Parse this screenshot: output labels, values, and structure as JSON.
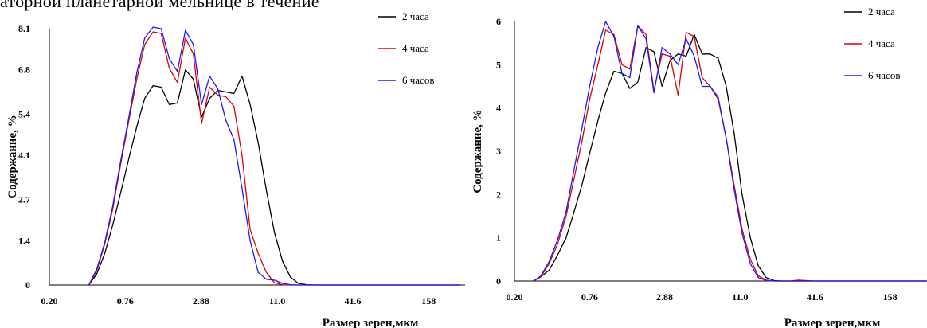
{
  "header_text": "аторной планетарной мельнице в течение",
  "chart_data": [
    {
      "type": "line",
      "ylabel": "Содержание, %",
      "xlabel": "Размер зерен,мкм",
      "x_scale": "log",
      "xlim": [
        0.2,
        300
      ],
      "ylim": [
        0,
        8.1
      ],
      "y_ticks": [
        "8.1",
        "6.8",
        "5.4",
        "4.1",
        "2.7",
        "1.4",
        "0"
      ],
      "y_tick_values": [
        8.1,
        6.8,
        5.4,
        4.1,
        2.7,
        1.4,
        0
      ],
      "x_ticks": [
        "0.20",
        "0.76",
        "2.88",
        "11.0",
        "41.6",
        "158"
      ],
      "x_tick_values": [
        0.2,
        0.76,
        2.88,
        11.0,
        41.6,
        158
      ],
      "legend_position": "top-right",
      "x": [
        0.4,
        0.46,
        0.53,
        0.61,
        0.7,
        0.81,
        0.93,
        1.07,
        1.24,
        1.43,
        1.65,
        1.9,
        2.19,
        2.52,
        2.91,
        3.35,
        3.87,
        4.46,
        5.14,
        5.93,
        6.84,
        7.88,
        9.09,
        10.5,
        12.1,
        13.9,
        16.0,
        18.5,
        21.3,
        24.6,
        28.4,
        32.7,
        37.7,
        43.5,
        50.1,
        57.8,
        66.7,
        76.9,
        88.6,
        102,
        118,
        136,
        157,
        181,
        208,
        240,
        277
      ],
      "series": [
        {
          "name": "2 часа",
          "color": "#000000",
          "values": [
            0,
            0.35,
            1.0,
            1.9,
            2.9,
            4.0,
            5.0,
            5.9,
            6.3,
            6.25,
            5.7,
            5.75,
            6.8,
            6.5,
            5.3,
            5.9,
            6.15,
            6.1,
            6.05,
            6.6,
            5.7,
            4.5,
            3.0,
            1.65,
            0.75,
            0.25,
            0.05,
            0.01,
            0,
            0,
            0,
            0,
            0,
            0,
            0,
            0,
            0,
            0,
            0,
            0,
            0,
            0,
            0,
            0,
            0,
            0,
            0
          ]
        },
        {
          "name": "4 часа",
          "color": "#e00000",
          "values": [
            0,
            0.45,
            1.3,
            2.4,
            3.8,
            5.2,
            6.5,
            7.6,
            8.0,
            7.95,
            6.85,
            6.4,
            7.8,
            7.3,
            5.1,
            6.25,
            6.0,
            5.95,
            5.65,
            4.1,
            1.75,
            1.0,
            0.4,
            0.07,
            0.01,
            0,
            0,
            0,
            0,
            0,
            0,
            0,
            0,
            0,
            0,
            0,
            0,
            0,
            0,
            0,
            0,
            0,
            0,
            0,
            0,
            0,
            0
          ]
        },
        {
          "name": "6 часов",
          "color": "#1a1aff",
          "values": [
            0,
            0.5,
            1.35,
            2.5,
            3.9,
            5.3,
            6.7,
            7.8,
            8.15,
            8.1,
            7.15,
            6.75,
            8.05,
            7.6,
            5.7,
            6.6,
            6.2,
            5.2,
            4.6,
            3.05,
            1.4,
            0.4,
            0.18,
            0.15,
            0.05,
            0.01,
            0,
            0,
            0,
            0,
            0,
            0,
            0,
            0,
            0,
            0,
            0,
            0,
            0,
            0,
            0,
            0,
            0,
            0,
            0,
            0,
            0
          ]
        }
      ]
    },
    {
      "type": "line",
      "ylabel": "Содержание, %",
      "xlabel": "Размер зерен,мкм",
      "x_scale": "log",
      "xlim": [
        0.2,
        300
      ],
      "ylim": [
        0,
        6
      ],
      "y_ticks": [
        "6",
        "5",
        "4",
        "3",
        "2",
        "1",
        "0"
      ],
      "y_tick_values": [
        6,
        5,
        4,
        3,
        2,
        1,
        0
      ],
      "x_ticks": [
        "0.20",
        "0.76",
        "2.88",
        "11.0",
        "41.6",
        "158"
      ],
      "x_tick_values": [
        0.2,
        0.76,
        2.88,
        11.0,
        41.6,
        158
      ],
      "legend_position": "top-right",
      "x": [
        0.28,
        0.32,
        0.37,
        0.43,
        0.5,
        0.57,
        0.66,
        0.76,
        0.88,
        1.01,
        1.17,
        1.35,
        1.55,
        1.79,
        2.07,
        2.38,
        2.75,
        3.17,
        3.66,
        4.22,
        4.87,
        5.61,
        6.47,
        7.46,
        8.6,
        9.92,
        11.4,
        13.2,
        15.2,
        17.5,
        20.2,
        23.3,
        26.9,
        31.0,
        35.8,
        41.3,
        47.6,
        54.9,
        63.3,
        73.0,
        84.2,
        97.1,
        112,
        129,
        149,
        172,
        198,
        228,
        263,
        303
      ],
      "series": [
        {
          "name": "2 часа",
          "color": "#000000",
          "values": [
            0,
            0.1,
            0.25,
            0.6,
            1.0,
            1.55,
            2.2,
            2.95,
            3.7,
            4.35,
            4.85,
            4.8,
            4.45,
            4.6,
            5.4,
            5.3,
            4.5,
            5.1,
            5.25,
            5.2,
            5.7,
            5.25,
            5.25,
            5.15,
            4.5,
            3.4,
            2.0,
            1.0,
            0.35,
            0.08,
            0.01,
            0,
            0,
            0,
            0,
            0,
            0,
            0,
            0,
            0,
            0,
            0,
            0,
            0,
            0,
            0,
            0,
            0,
            0,
            0
          ]
        },
        {
          "name": "4 часа",
          "color": "#e00000",
          "values": [
            0,
            0.1,
            0.4,
            0.85,
            1.5,
            2.3,
            3.2,
            4.2,
            5.0,
            5.8,
            5.7,
            5.0,
            4.9,
            5.9,
            5.7,
            4.4,
            5.25,
            5.2,
            4.3,
            5.75,
            5.65,
            4.7,
            4.5,
            4.2,
            3.3,
            2.2,
            1.2,
            0.5,
            0.12,
            0.02,
            0,
            0,
            0,
            0.02,
            0.01,
            0,
            0,
            0,
            0,
            0,
            0,
            0,
            0,
            0,
            0,
            0,
            0,
            0,
            0,
            0
          ]
        },
        {
          "name": "6 часов",
          "color": "#1a1aff",
          "values": [
            0,
            0.12,
            0.45,
            0.95,
            1.6,
            2.5,
            3.5,
            4.5,
            5.4,
            6.0,
            5.65,
            4.8,
            4.7,
            5.9,
            5.6,
            4.35,
            5.4,
            5.25,
            5.0,
            5.6,
            5.2,
            4.5,
            4.5,
            4.25,
            3.3,
            2.1,
            1.1,
            0.4,
            0.08,
            0.01,
            0,
            0,
            0,
            0,
            0,
            0,
            0,
            0,
            0,
            0,
            0,
            0,
            0,
            0,
            0,
            0,
            0,
            0,
            0,
            0
          ]
        }
      ]
    }
  ]
}
